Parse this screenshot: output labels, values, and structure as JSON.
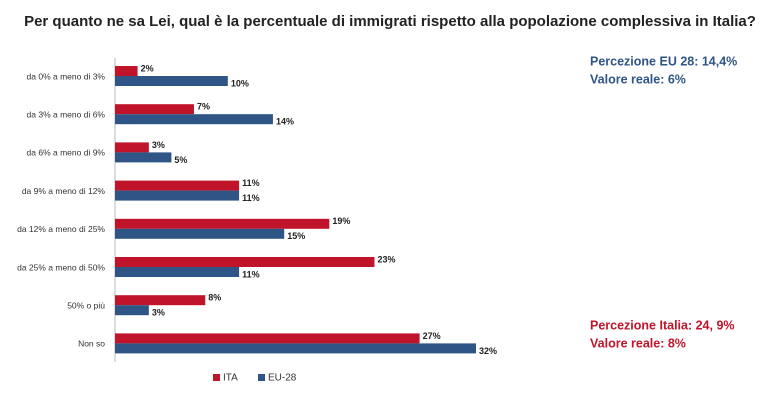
{
  "chart_data": {
    "type": "bar",
    "orientation": "horizontal",
    "title": "Per quanto ne sa Lei, qual è la percentuale di immigrati rispetto alla popolazione complessiva in Italia?",
    "categories": [
      "da 0% a meno di 3%",
      "da 3% a meno di 6%",
      "da 6% a meno di 9%",
      "da 9% a meno di 12%",
      "da 12% a meno di 25%",
      "da 25% a meno di 50%",
      "50% o più",
      "Non so"
    ],
    "series": [
      {
        "name": "ITA",
        "color": "#c0142b",
        "values": [
          2,
          7,
          3,
          11,
          19,
          23,
          8,
          27
        ],
        "value_labels": [
          "2%",
          "7%",
          "3%",
          "11%",
          "19%",
          "23%",
          "8%",
          "27%"
        ]
      },
      {
        "name": "EU-28",
        "color": "#2e5586",
        "values": [
          10,
          14,
          5,
          11,
          15,
          11,
          3,
          32
        ],
        "value_labels": [
          "10%",
          "14%",
          "5%",
          "11%",
          "15%",
          "11%",
          "3%",
          "32%"
        ]
      }
    ],
    "annotations": [
      {
        "text": "Percezione EU 28: 14,4%",
        "color": "#2e5586"
      },
      {
        "text": "Valore reale: 6%",
        "color": "#2e5586"
      },
      {
        "text": "Percezione Italia: 24, 9%",
        "color": "#c0142b"
      },
      {
        "text": "Valore reale: 8%",
        "color": "#c0142b"
      }
    ],
    "legend": "bottom"
  }
}
